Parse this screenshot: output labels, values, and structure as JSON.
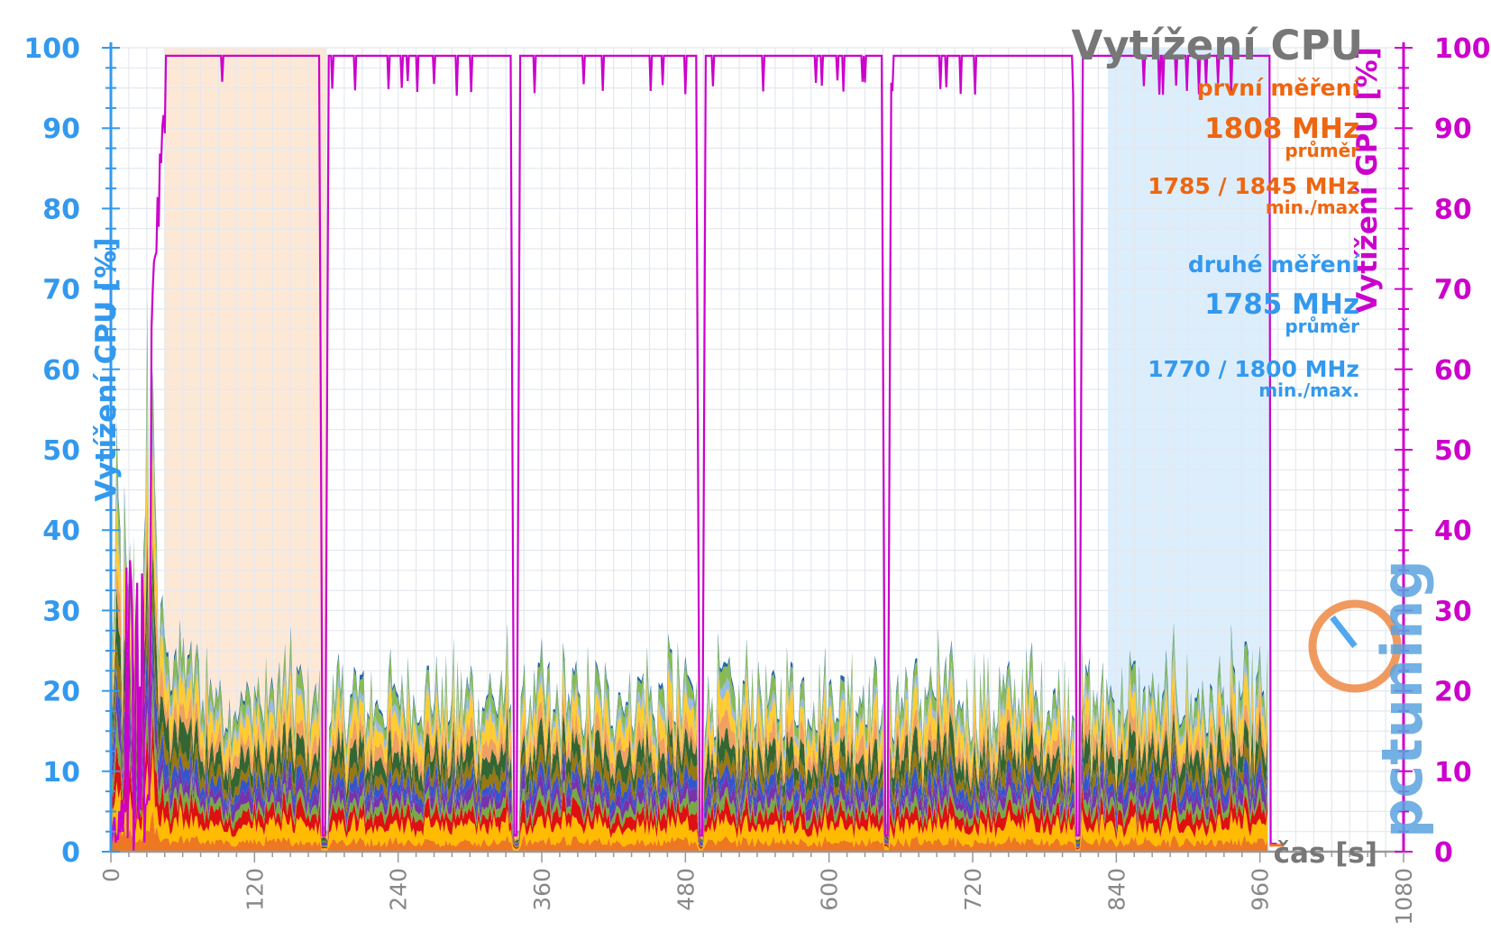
{
  "chart_data": {
    "type": "area",
    "title": "Vytížení CPU",
    "xlabel": "čas [s]",
    "ylabel_left": "Vytížení CPU [%]",
    "ylabel_right": "Vytížení GPU [%]",
    "xlim": [
      0,
      1080
    ],
    "ylim": [
      0,
      100
    ],
    "x_ticks": [
      "0",
      "120",
      "240",
      "360",
      "480",
      "600",
      "720",
      "840",
      "960",
      "1080"
    ],
    "y_ticks_left": [
      "0",
      "10",
      "20",
      "30",
      "40",
      "50",
      "60",
      "70",
      "80",
      "90",
      "100"
    ],
    "y_ticks_right": [
      "0",
      "10",
      "20",
      "30",
      "40",
      "50",
      "60",
      "70",
      "80",
      "90",
      "100"
    ],
    "grid": true,
    "highlight_regions": [
      {
        "from": 45,
        "to": 180,
        "color": "#fde8d6"
      },
      {
        "from": 833,
        "to": 968,
        "color": "#dceefc"
      }
    ],
    "stack_layers_avg": [
      {
        "color": "#ee7722",
        "value": 1.2
      },
      {
        "color": "#ffbb00",
        "value": 2.0
      },
      {
        "color": "#dd1111",
        "value": 1.6
      },
      {
        "color": "#77aa44",
        "value": 1.1
      },
      {
        "color": "#7733aa",
        "value": 1.3
      },
      {
        "color": "#3355cc",
        "value": 1.3
      },
      {
        "color": "#997711",
        "value": 1.4
      },
      {
        "color": "#336633",
        "value": 2.2
      },
      {
        "color": "#f0a060",
        "value": 1.8
      },
      {
        "color": "#ffcc33",
        "value": 2.4
      },
      {
        "color": "#99bbdd",
        "value": 1.0
      },
      {
        "color": "#88bb55",
        "value": 1.7
      },
      {
        "color": "#2266aa",
        "value": 0.4
      }
    ],
    "gpu_series": {
      "color": "#cc00cc",
      "high": 99,
      "drops": [
        {
          "t": 178,
          "min": 2
        },
        {
          "t": 338,
          "min": 2
        },
        {
          "t": 493,
          "min": 2
        },
        {
          "t": 648,
          "min": 2
        },
        {
          "t": 808,
          "min": 2
        }
      ],
      "end": 968
    },
    "annotations": {
      "first_label": "první měření",
      "first_avg": "1808 MHz",
      "first_avg_sub": "průměr",
      "first_minmax": "1785 / 1845 MHz",
      "first_minmax_sub": "min./max",
      "second_label": "druhé měření",
      "second_avg": "1785 MHz",
      "second_avg_sub": "průměr",
      "second_minmax": "1770 / 1800 MHz",
      "second_minmax_sub": "min./max."
    },
    "logo": "pctuning"
  }
}
